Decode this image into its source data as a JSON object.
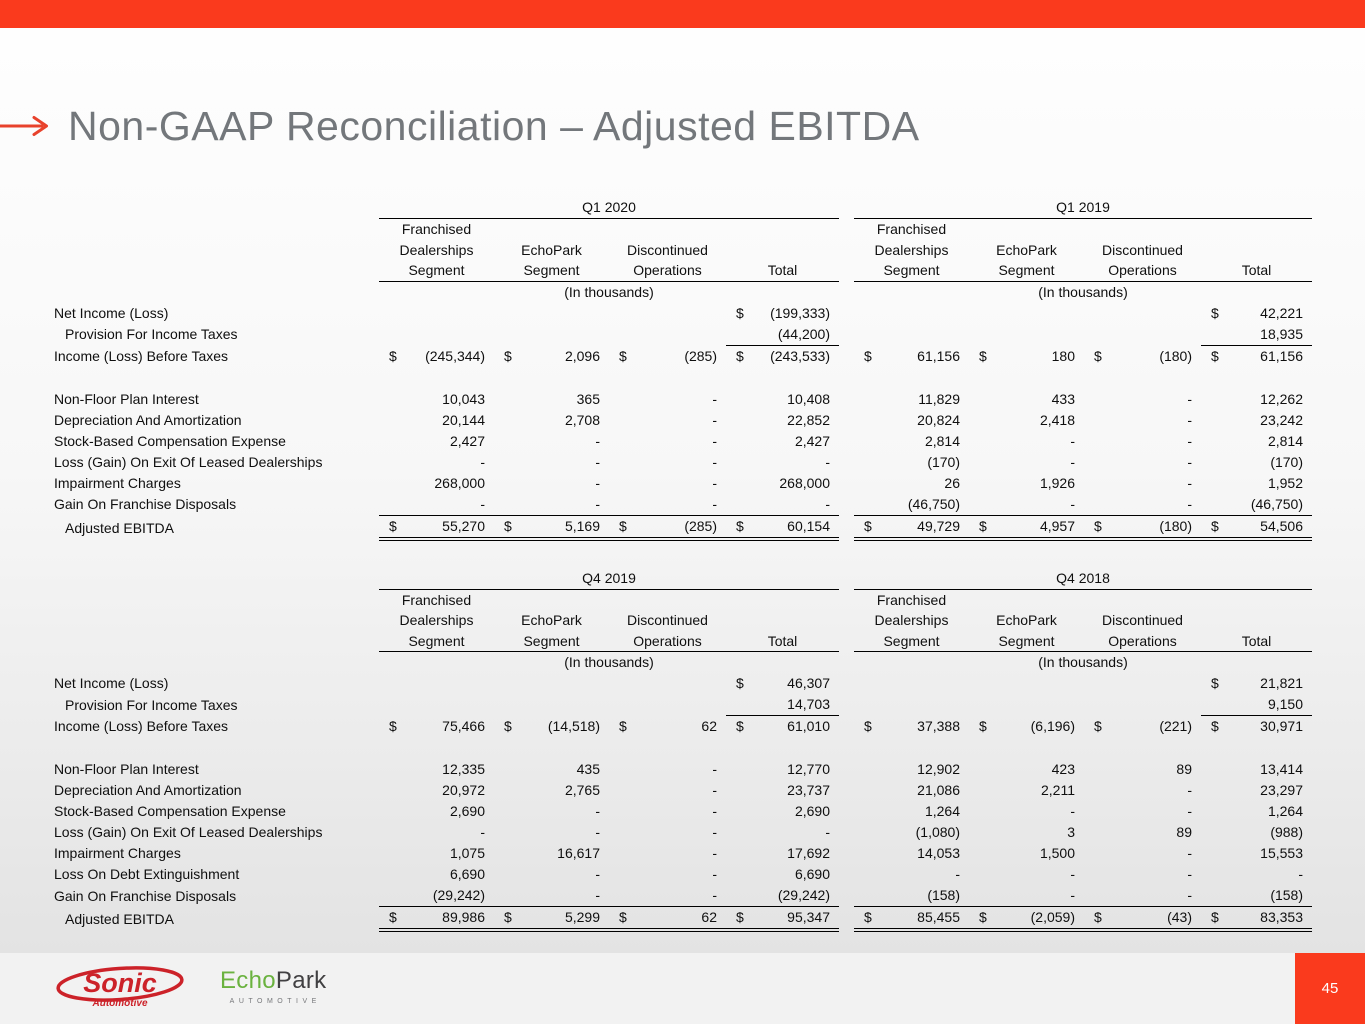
{
  "colors": {
    "accent": "#fa3a1d",
    "arrow": "#e8422c",
    "title": "#73777b",
    "sonic_red": "#cc2229",
    "echopark_green": "#6ab23f",
    "echopark_dark": "#414042"
  },
  "title": {
    "text": "Non-GAAP Reconciliation – Adjusted EBITDA"
  },
  "units_note": "(In thousands)",
  "segment_headers": [
    {
      "lines": [
        "Franchised",
        "Dealerships",
        "Segment"
      ]
    },
    {
      "lines": [
        "EchoPark",
        "Segment"
      ]
    },
    {
      "lines": [
        "Discontinued",
        "Operations"
      ]
    },
    {
      "lines": [
        "Total"
      ]
    }
  ],
  "tables": [
    {
      "periods": [
        "Q1 2020",
        "Q1 2019"
      ],
      "rows": [
        {
          "label": "Net Income (Loss)",
          "indent": 0,
          "type": "plain",
          "cells": [
            [
              "",
              ""
            ],
            [
              "",
              ""
            ],
            [
              "",
              ""
            ],
            [
              "$",
              "(199,333)"
            ],
            [
              "",
              ""
            ],
            [
              "",
              ""
            ],
            [
              "",
              ""
            ],
            [
              "$",
              "42,221"
            ]
          ]
        },
        {
          "label": "Provision For Income Taxes",
          "indent": 1,
          "type": "underline-total",
          "cells": [
            [
              "",
              ""
            ],
            [
              "",
              ""
            ],
            [
              "",
              ""
            ],
            [
              "",
              "(44,200)"
            ],
            [
              "",
              ""
            ],
            [
              "",
              ""
            ],
            [
              "",
              ""
            ],
            [
              "",
              "18,935"
            ]
          ]
        },
        {
          "label": "Income (Loss) Before Taxes",
          "indent": 0,
          "type": "plain",
          "cells": [
            [
              "$",
              "(245,344)"
            ],
            [
              "$",
              "2,096"
            ],
            [
              "$",
              "(285)"
            ],
            [
              "$",
              "(243,533)"
            ],
            [
              "$",
              "61,156"
            ],
            [
              "$",
              "180"
            ],
            [
              "$",
              "(180)"
            ],
            [
              "$",
              "61,156"
            ]
          ]
        },
        {
          "label": "",
          "indent": 0,
          "type": "spacer",
          "cells": []
        },
        {
          "label": "Non-Floor Plan Interest",
          "indent": 0,
          "type": "plain",
          "cells": [
            [
              "",
              "10,043"
            ],
            [
              "",
              "365"
            ],
            [
              "",
              "-"
            ],
            [
              "",
              "10,408"
            ],
            [
              "",
              "11,829"
            ],
            [
              "",
              "433"
            ],
            [
              "",
              "-"
            ],
            [
              "",
              "12,262"
            ]
          ]
        },
        {
          "label": "Depreciation And Amortization",
          "indent": 0,
          "type": "plain",
          "cells": [
            [
              "",
              "20,144"
            ],
            [
              "",
              "2,708"
            ],
            [
              "",
              "-"
            ],
            [
              "",
              "22,852"
            ],
            [
              "",
              "20,824"
            ],
            [
              "",
              "2,418"
            ],
            [
              "",
              "-"
            ],
            [
              "",
              "23,242"
            ]
          ]
        },
        {
          "label": "Stock-Based Compensation Expense",
          "indent": 0,
          "type": "plain",
          "cells": [
            [
              "",
              "2,427"
            ],
            [
              "",
              "-"
            ],
            [
              "",
              "-"
            ],
            [
              "",
              "2,427"
            ],
            [
              "",
              "2,814"
            ],
            [
              "",
              "-"
            ],
            [
              "",
              "-"
            ],
            [
              "",
              "2,814"
            ]
          ]
        },
        {
          "label": "Loss (Gain) On Exit Of Leased Dealerships",
          "indent": 0,
          "type": "plain",
          "cells": [
            [
              "",
              "-"
            ],
            [
              "",
              "-"
            ],
            [
              "",
              "-"
            ],
            [
              "",
              "-"
            ],
            [
              "",
              "(170)"
            ],
            [
              "",
              "-"
            ],
            [
              "",
              "-"
            ],
            [
              "",
              "(170)"
            ]
          ]
        },
        {
          "label": "Impairment Charges",
          "indent": 0,
          "type": "plain",
          "cells": [
            [
              "",
              "268,000"
            ],
            [
              "",
              "-"
            ],
            [
              "",
              "-"
            ],
            [
              "",
              "268,000"
            ],
            [
              "",
              "26"
            ],
            [
              "",
              "1,926"
            ],
            [
              "",
              "-"
            ],
            [
              "",
              "1,952"
            ]
          ]
        },
        {
          "label": "Gain On Franchise Disposals",
          "indent": 0,
          "type": "underline-all",
          "cells": [
            [
              "",
              "-"
            ],
            [
              "",
              "-"
            ],
            [
              "",
              "-"
            ],
            [
              "",
              "-"
            ],
            [
              "",
              "(46,750)"
            ],
            [
              "",
              "-"
            ],
            [
              "",
              "-"
            ],
            [
              "",
              "(46,750)"
            ]
          ]
        },
        {
          "label": "Adjusted EBITDA",
          "indent": 1,
          "type": "total",
          "cells": [
            [
              "$",
              "55,270"
            ],
            [
              "$",
              "5,169"
            ],
            [
              "$",
              "(285)"
            ],
            [
              "$",
              "60,154"
            ],
            [
              "$",
              "49,729"
            ],
            [
              "$",
              "4,957"
            ],
            [
              "$",
              "(180)"
            ],
            [
              "$",
              "54,506"
            ]
          ]
        }
      ]
    },
    {
      "periods": [
        "Q4 2019",
        "Q4 2018"
      ],
      "rows": [
        {
          "label": "Net Income (Loss)",
          "indent": 0,
          "type": "plain",
          "cells": [
            [
              "",
              ""
            ],
            [
              "",
              ""
            ],
            [
              "",
              ""
            ],
            [
              "$",
              "46,307"
            ],
            [
              "",
              ""
            ],
            [
              "",
              ""
            ],
            [
              "",
              ""
            ],
            [
              "$",
              "21,821"
            ]
          ]
        },
        {
          "label": "Provision For Income Taxes",
          "indent": 1,
          "type": "underline-total",
          "cells": [
            [
              "",
              ""
            ],
            [
              "",
              ""
            ],
            [
              "",
              ""
            ],
            [
              "",
              "14,703"
            ],
            [
              "",
              ""
            ],
            [
              "",
              ""
            ],
            [
              "",
              ""
            ],
            [
              "",
              "9,150"
            ]
          ]
        },
        {
          "label": "Income (Loss) Before Taxes",
          "indent": 0,
          "type": "plain",
          "cells": [
            [
              "$",
              "75,466"
            ],
            [
              "$",
              "(14,518)"
            ],
            [
              "$",
              "62"
            ],
            [
              "$",
              "61,010"
            ],
            [
              "$",
              "37,388"
            ],
            [
              "$",
              "(6,196)"
            ],
            [
              "$",
              "(221)"
            ],
            [
              "$",
              "30,971"
            ]
          ]
        },
        {
          "label": "",
          "indent": 0,
          "type": "spacer",
          "cells": []
        },
        {
          "label": "Non-Floor Plan Interest",
          "indent": 0,
          "type": "plain",
          "cells": [
            [
              "",
              "12,335"
            ],
            [
              "",
              "435"
            ],
            [
              "",
              "-"
            ],
            [
              "",
              "12,770"
            ],
            [
              "",
              "12,902"
            ],
            [
              "",
              "423"
            ],
            [
              "",
              "89"
            ],
            [
              "",
              "13,414"
            ]
          ]
        },
        {
          "label": "Depreciation And Amortization",
          "indent": 0,
          "type": "plain",
          "cells": [
            [
              "",
              "20,972"
            ],
            [
              "",
              "2,765"
            ],
            [
              "",
              "-"
            ],
            [
              "",
              "23,737"
            ],
            [
              "",
              "21,086"
            ],
            [
              "",
              "2,211"
            ],
            [
              "",
              "-"
            ],
            [
              "",
              "23,297"
            ]
          ]
        },
        {
          "label": "Stock-Based Compensation Expense",
          "indent": 0,
          "type": "plain",
          "cells": [
            [
              "",
              "2,690"
            ],
            [
              "",
              "-"
            ],
            [
              "",
              "-"
            ],
            [
              "",
              "2,690"
            ],
            [
              "",
              "1,264"
            ],
            [
              "",
              "-"
            ],
            [
              "",
              "-"
            ],
            [
              "",
              "1,264"
            ]
          ]
        },
        {
          "label": "Loss (Gain) On Exit Of Leased Dealerships",
          "indent": 0,
          "type": "plain",
          "cells": [
            [
              "",
              "-"
            ],
            [
              "",
              "-"
            ],
            [
              "",
              "-"
            ],
            [
              "",
              "-"
            ],
            [
              "",
              "(1,080)"
            ],
            [
              "",
              "3"
            ],
            [
              "",
              "89"
            ],
            [
              "",
              "(988)"
            ]
          ]
        },
        {
          "label": "Impairment Charges",
          "indent": 0,
          "type": "plain",
          "cells": [
            [
              "",
              "1,075"
            ],
            [
              "",
              "16,617"
            ],
            [
              "",
              "-"
            ],
            [
              "",
              "17,692"
            ],
            [
              "",
              "14,053"
            ],
            [
              "",
              "1,500"
            ],
            [
              "",
              "-"
            ],
            [
              "",
              "15,553"
            ]
          ]
        },
        {
          "label": "Loss On Debt Extinguishment",
          "indent": 0,
          "type": "plain",
          "cells": [
            [
              "",
              "6,690"
            ],
            [
              "",
              "-"
            ],
            [
              "",
              "-"
            ],
            [
              "",
              "6,690"
            ],
            [
              "",
              "-"
            ],
            [
              "",
              "-"
            ],
            [
              "",
              "-"
            ],
            [
              "",
              "-"
            ]
          ]
        },
        {
          "label": "Gain On Franchise Disposals",
          "indent": 0,
          "type": "underline-all",
          "cells": [
            [
              "",
              "(29,242)"
            ],
            [
              "",
              "-"
            ],
            [
              "",
              "-"
            ],
            [
              "",
              "(29,242)"
            ],
            [
              "",
              "(158)"
            ],
            [
              "",
              "-"
            ],
            [
              "",
              "-"
            ],
            [
              "",
              "(158)"
            ]
          ]
        },
        {
          "label": "Adjusted EBITDA",
          "indent": 1,
          "type": "total",
          "cells": [
            [
              "$",
              "89,986"
            ],
            [
              "$",
              "5,299"
            ],
            [
              "$",
              "62"
            ],
            [
              "$",
              "95,347"
            ],
            [
              "$",
              "85,455"
            ],
            [
              "$",
              "(2,059)"
            ],
            [
              "$",
              "(43)"
            ],
            [
              "$",
              "83,353"
            ]
          ]
        }
      ]
    }
  ],
  "footer": {
    "page_number": "45",
    "sonic_logo": {
      "name": "Sonic",
      "subtext": "Automotive"
    },
    "echopark_logo": {
      "part1": "Echo",
      "part2": "Park",
      "subtext": "AUTOMOTIVE"
    }
  }
}
